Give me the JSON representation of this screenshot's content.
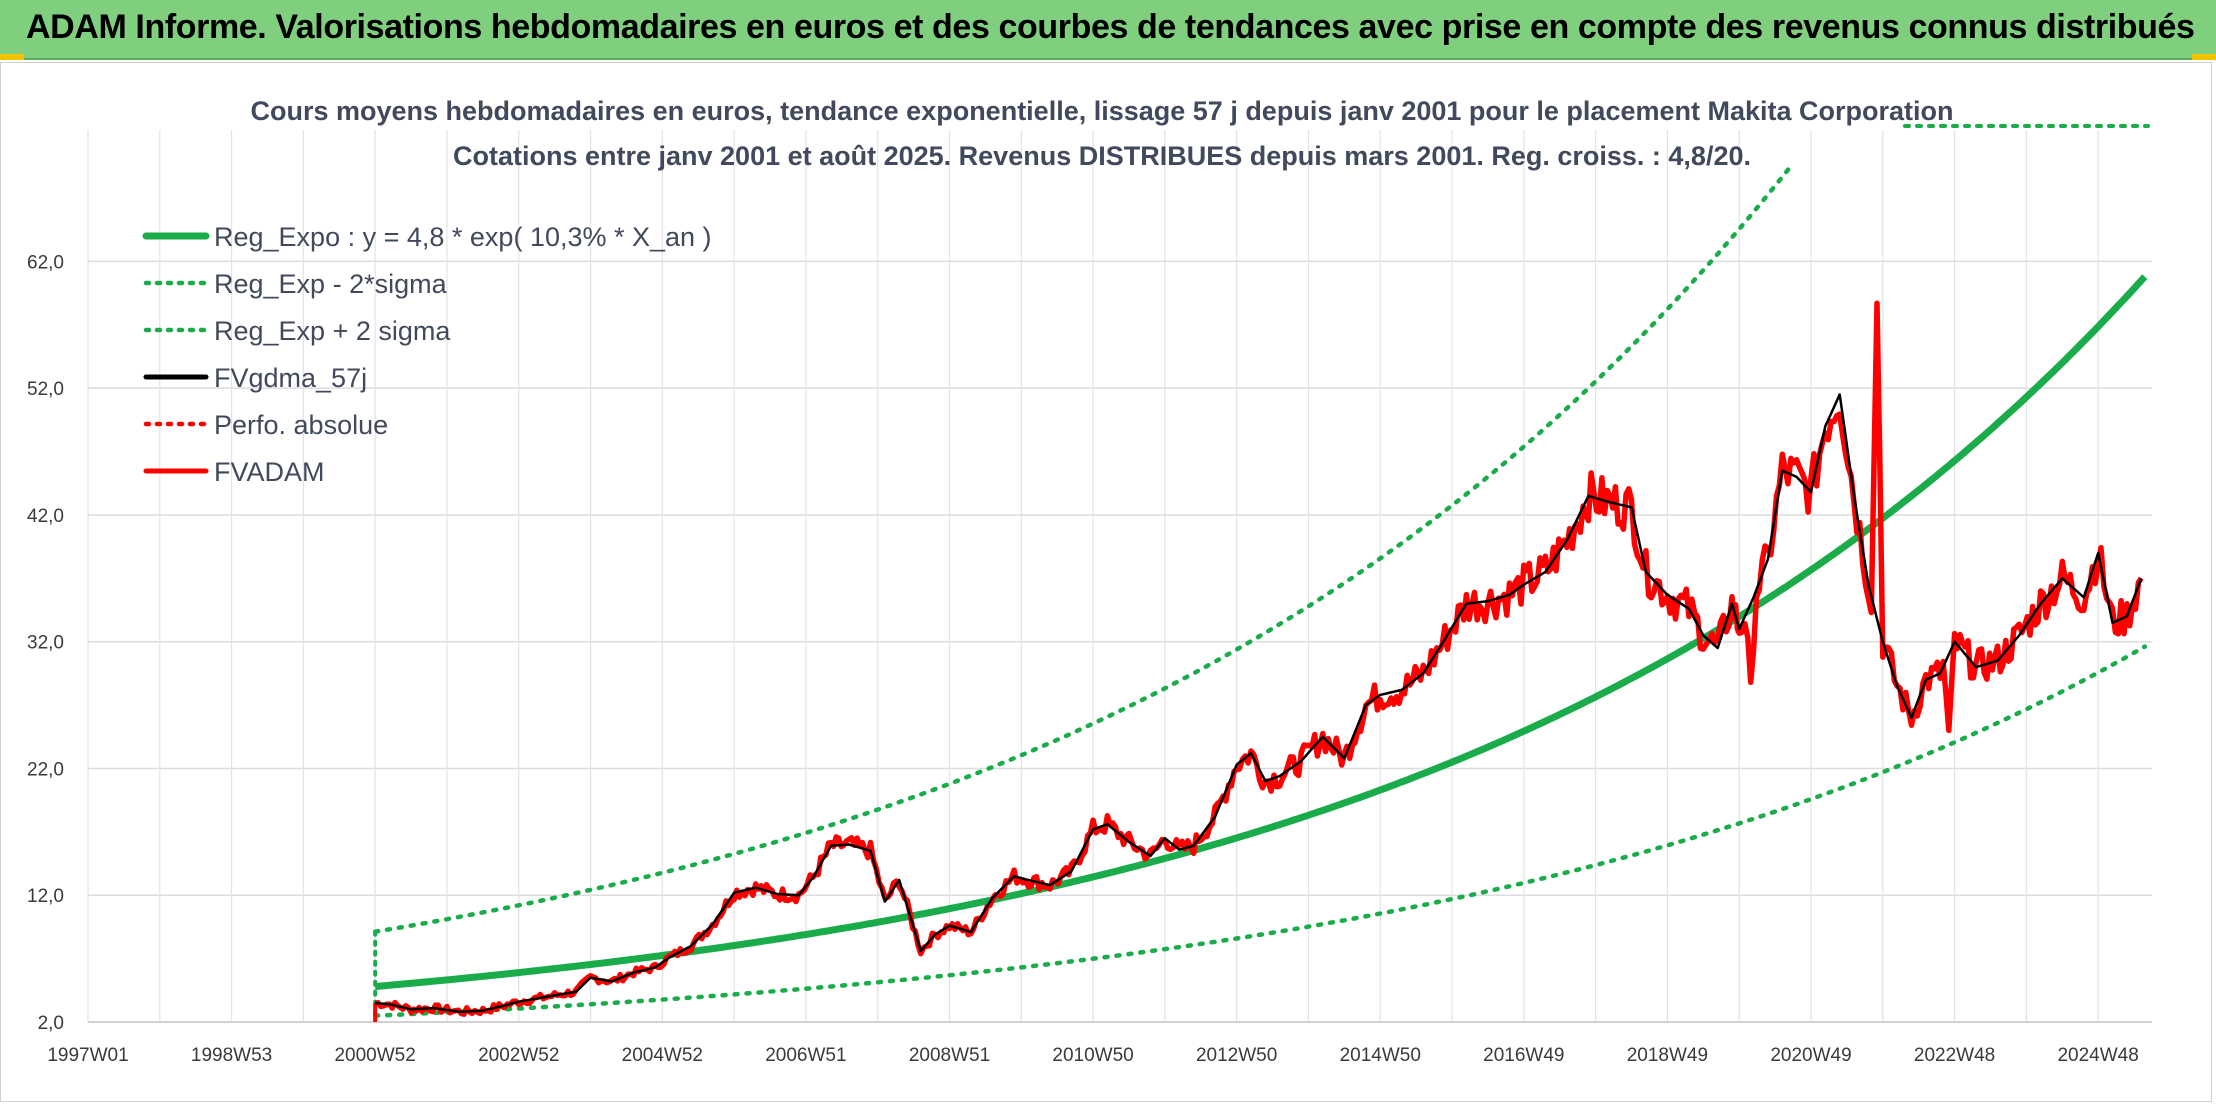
{
  "header": {
    "title": "ADAM Informe. Valorisations hebdomadaires en euros et des courbes de tendances avec prise en compte des revenus connus distribués"
  },
  "chart_data": {
    "type": "line",
    "title_line1": "Cours moyens hebdomadaires en euros, tendance exponentielle, lissage 57 j depuis janv 2001 pour le placement Makita Corporation",
    "title_line2": "Cotations entre janv 2001 et août 2025. Revenus DISTRIBUES depuis mars 2001. Reg. croiss. : 4,8/20.",
    "xlabel": "",
    "ylabel": "",
    "xlim": [
      1997.0,
      2025.75
    ],
    "ylim": [
      2.0,
      70.0
    ],
    "y_ticks": [
      "2,0",
      "12,0",
      "22,0",
      "32,0",
      "42,0",
      "52,0",
      "62,0"
    ],
    "x_ticks": [
      {
        "label": "1997W01",
        "year": 1997.0
      },
      {
        "label": "1998W53",
        "year": 1999.0
      },
      {
        "label": "2000W52",
        "year": 2001.0
      },
      {
        "label": "2002W52",
        "year": 2003.0
      },
      {
        "label": "2004W52",
        "year": 2005.0
      },
      {
        "label": "2006W51",
        "year": 2007.0
      },
      {
        "label": "2008W51",
        "year": 2009.0
      },
      {
        "label": "2010W50",
        "year": 2011.0
      },
      {
        "label": "2012W50",
        "year": 2013.0
      },
      {
        "label": "2014W50",
        "year": 2015.0
      },
      {
        "label": "2016W49",
        "year": 2017.0
      },
      {
        "label": "2018W49",
        "year": 2019.0
      },
      {
        "label": "2020W49",
        "year": 2021.0
      },
      {
        "label": "2022W48",
        "year": 2023.0
      },
      {
        "label": "2024W48",
        "year": 2025.0
      }
    ],
    "grid": true,
    "legend_position": "top-left",
    "regression": {
      "start_year": 2001.0,
      "end_year": 2025.65,
      "base": 4.8,
      "growth_rate": 0.103,
      "lower_factor": 0.52,
      "upper_factor": 1.9
    },
    "series": [
      {
        "name": "Reg_Expo : y = 4,8 * exp( 10,3% *  X_an )",
        "color": "#1aab4b",
        "style": "solid",
        "role": "regression"
      },
      {
        "name": "Reg_Exp - 2*sigma",
        "color": "#1aab4b",
        "style": "dotted",
        "role": "lower_band"
      },
      {
        "name": "Reg_Exp + 2 sigma",
        "color": "#1aab4b",
        "style": "dotted",
        "role": "upper_band"
      },
      {
        "name": "FVgdma_57j",
        "color": "#000000",
        "style": "solid",
        "role": "moving_average"
      },
      {
        "name": "Perfo. absolue",
        "color": "#ff0000",
        "style": "dotted",
        "role": "absolute_perf"
      },
      {
        "name": "FVADAM",
        "color": "#ff0000",
        "style": "solid",
        "role": "price"
      }
    ],
    "price_series": {
      "x": [
        2001.0,
        2001.2,
        2001.5,
        2001.8,
        2002.2,
        2002.5,
        2002.8,
        2003.0,
        2003.3,
        2003.5,
        2003.8,
        2004.0,
        2004.3,
        2004.6,
        2004.9,
        2005.1,
        2005.4,
        2005.7,
        2006.0,
        2006.3,
        2006.6,
        2006.9,
        2007.1,
        2007.35,
        2007.6,
        2007.9,
        2008.1,
        2008.3,
        2008.6,
        2008.8,
        2009.0,
        2009.3,
        2009.6,
        2009.9,
        2010.1,
        2010.4,
        2010.7,
        2011.0,
        2011.2,
        2011.5,
        2011.8,
        2012.0,
        2012.2,
        2012.4,
        2012.7,
        2013.0,
        2013.2,
        2013.4,
        2013.6,
        2013.9,
        2014.2,
        2014.5,
        2014.8,
        2015.0,
        2015.3,
        2015.6,
        2015.9,
        2016.2,
        2016.5,
        2016.8,
        2017.0,
        2017.3,
        2017.6,
        2017.9,
        2018.2,
        2018.5,
        2018.7,
        2019.0,
        2019.3,
        2019.5,
        2019.7,
        2019.9,
        2020.0,
        2020.2,
        2020.4,
        2020.6,
        2020.8,
        2021.0,
        2021.2,
        2021.4,
        2021.6,
        2021.8,
        2022.0,
        2022.2,
        2022.4,
        2022.6,
        2022.8,
        2023.0,
        2023.3,
        2023.6,
        2023.9,
        2024.2,
        2024.5,
        2024.8,
        2025.0,
        2025.2,
        2025.4,
        2025.6
      ],
      "y": [
        3.5,
        3.4,
        3.0,
        3.1,
        2.8,
        2.9,
        3.3,
        3.6,
        3.9,
        4.1,
        4.4,
        5.5,
        5.2,
        5.9,
        6.3,
        7.1,
        8.0,
        9.7,
        12.2,
        12.6,
        12.1,
        12.0,
        13.4,
        15.9,
        16.0,
        15.5,
        11.5,
        13.2,
        7.6,
        8.9,
        9.6,
        9.1,
        11.8,
        13.5,
        13.2,
        12.8,
        13.9,
        17.2,
        17.6,
        16.2,
        15.1,
        16.5,
        15.6,
        15.9,
        18.2,
        22.3,
        23.2,
        21.0,
        21.4,
        22.6,
        24.5,
        22.8,
        27.0,
        27.8,
        28.2,
        29.5,
        32.2,
        35.0,
        35.2,
        35.7,
        36.5,
        37.5,
        40.0,
        43.5,
        43.0,
        42.6,
        37.5,
        35.7,
        34.6,
        32.5,
        31.5,
        35.0,
        33.0,
        35.5,
        38.5,
        45.5,
        45.0,
        43.8,
        49.0,
        51.5,
        43.5,
        36.5,
        32.0,
        28.5,
        26.0,
        29.0,
        29.5,
        32.0,
        30.0,
        30.5,
        32.5,
        35.0,
        37.0,
        35.5,
        39.0,
        33.5,
        34.0,
        37.0
      ]
    },
    "spikes": [
      {
        "year": 2021.9,
        "value": 58.7
      },
      {
        "year": 2020.15,
        "value": 28.8
      },
      {
        "year": 2022.9,
        "value": 25.0
      }
    ]
  }
}
